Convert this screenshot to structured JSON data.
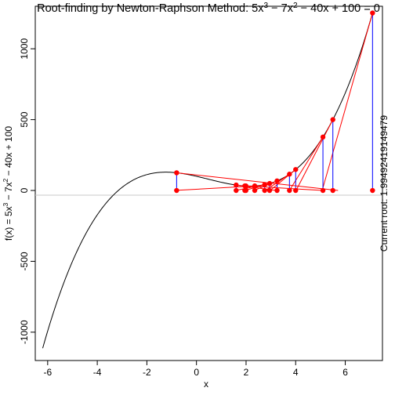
{
  "chart_data": {
    "type": "line",
    "title": "Root-finding by Newton-Raphson Method: 5x^3 − 7x^2 − 40x + 100 = 0",
    "xlabel": "x",
    "ylabel": "f(x) = 5x^3 − 7x^2 − 40x + 100",
    "side_label": "Current root: 1.99492419149479",
    "coefficients": [
      5,
      -7,
      -40,
      100
    ],
    "xlim": [
      -6.5,
      7.5
    ],
    "ylim": [
      -1200,
      1300
    ],
    "x_ticks": [
      -6,
      -4,
      -2,
      0,
      2,
      4,
      6
    ],
    "y_ticks": [
      -1000,
      -500,
      0,
      500,
      1000
    ],
    "curve_range": [
      -6.2,
      7.1
    ],
    "zero_line": true,
    "colors": {
      "curve": "#000000",
      "iterate": "#ff0000",
      "vertical": "#0000ff",
      "zero_line": "#c8c8c8"
    },
    "iterates": [
      7.1,
      5.5,
      5.1,
      4.0,
      3.75,
      3.25,
      2.95,
      2.75,
      2.35,
      1.6,
      -0.8,
      1.95,
      1.995
    ]
  }
}
